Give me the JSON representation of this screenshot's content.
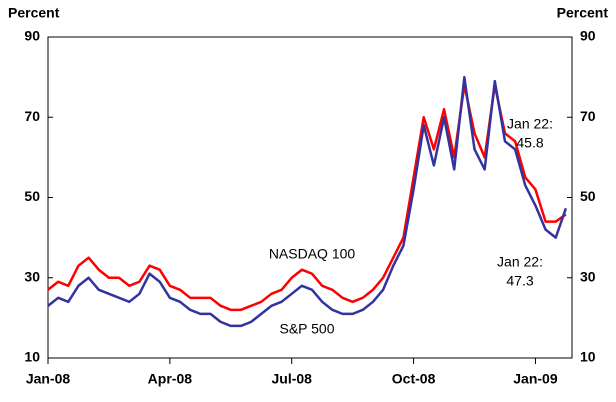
{
  "chart_data": {
    "type": "line",
    "y_label_left": "Percent",
    "y_label_right": "Percent",
    "x": [
      0,
      0.25,
      0.5,
      0.75,
      1,
      1.25,
      1.5,
      1.75,
      2,
      2.25,
      2.5,
      2.75,
      3,
      3.25,
      3.5,
      3.75,
      4,
      4.25,
      4.5,
      4.75,
      5,
      5.25,
      5.5,
      5.75,
      6,
      6.25,
      6.5,
      6.75,
      7,
      7.25,
      7.5,
      7.75,
      8,
      8.25,
      8.5,
      8.75,
      9,
      9.25,
      9.5,
      9.75,
      10,
      10.25,
      10.5,
      10.75,
      11,
      11.25,
      11.5,
      11.75,
      12,
      12.25,
      12.5,
      12.75
    ],
    "series": [
      {
        "name": "NASDAQ 100",
        "color": "#ff0000",
        "values": [
          27,
          29,
          28,
          33,
          35,
          32,
          30,
          30,
          28,
          29,
          33,
          32,
          28,
          27,
          25,
          25,
          25,
          23,
          22,
          22,
          23,
          24,
          26,
          27,
          30,
          32,
          31,
          28,
          27,
          25,
          24,
          25,
          27,
          30,
          35,
          40,
          55,
          70,
          62,
          72,
          60,
          78,
          66,
          60,
          78,
          66,
          64,
          55,
          52,
          44,
          44,
          45.8
        ]
      },
      {
        "name": "S&P 500",
        "color": "#3333a0",
        "values": [
          23,
          25,
          24,
          28,
          30,
          27,
          26,
          25,
          24,
          26,
          31,
          29,
          25,
          24,
          22,
          21,
          21,
          19,
          18,
          18,
          19,
          21,
          23,
          24,
          26,
          28,
          27,
          24,
          22,
          21,
          21,
          22,
          24,
          27,
          33,
          38,
          52,
          68,
          58,
          70,
          57,
          80,
          62,
          57,
          79,
          64,
          62,
          53,
          48,
          42,
          40,
          47.3
        ]
      }
    ],
    "annotations": [
      "Jan 22:",
      "Jan 22:"
    ],
    "xlim": [
      0,
      12.9
    ],
    "xticks": [
      {
        "value": 0,
        "label": "Jan-08"
      },
      {
        "value": 3,
        "label": "Apr-08"
      },
      {
        "value": 6,
        "label": "Jul-08"
      },
      {
        "value": 9,
        "label": "Oct-08"
      },
      {
        "value": 12,
        "label": "Jan-09"
      }
    ],
    "ylim": [
      10,
      90
    ],
    "yticks": [
      10,
      30,
      50,
      70,
      90
    ],
    "y2lim": [
      10,
      90
    ],
    "y2ticks": [
      10,
      30,
      50,
      70,
      90
    ],
    "grid": false
  }
}
